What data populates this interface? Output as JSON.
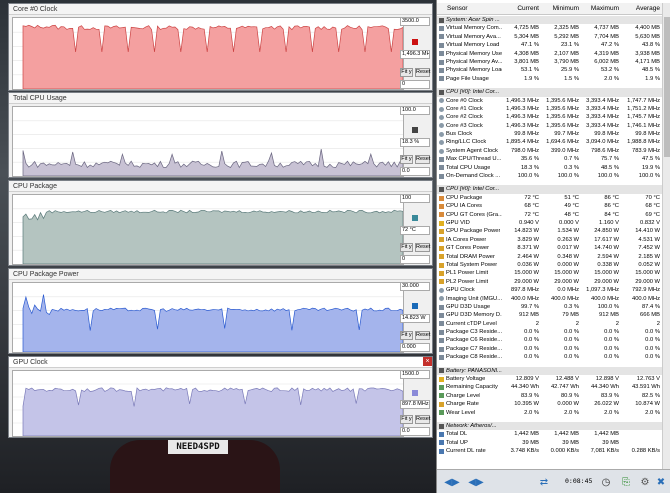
{
  "background": {
    "plate_text": "NEED4SPD"
  },
  "graphs": [
    {
      "title": "Core #0 Clock",
      "max": "3500.0",
      "current": "1,496.3 MHz",
      "min": "0",
      "fit_label": "Fit y",
      "reset_label": "Reset",
      "swatch": "#cc1111",
      "fill": "#f4a0a0",
      "stroke": "#cc4444",
      "ymax": 3500,
      "level": 1496
    },
    {
      "title": "Total CPU Usage",
      "max": "100.0",
      "current": "18.3 %",
      "min": "0.0",
      "fit_label": "Fit y",
      "reset_label": "Reset",
      "swatch": "#444444",
      "fill": "#c8c2d4",
      "stroke": "#6a6680",
      "ymax": 100,
      "level": 18
    },
    {
      "title": "CPU Package",
      "max": "100",
      "current": "72 °C",
      "min": "0",
      "fit_label": "Fit y",
      "reset_label": "Reset",
      "swatch": "#3a8a9a",
      "fill": "#b4c4c0",
      "stroke": "#5a7a7a",
      "ymax": 100,
      "level": 72
    },
    {
      "title": "CPU Package Power",
      "max": "30.000",
      "current": "14.823 W",
      "min": "0.000",
      "fit_label": "Fit y",
      "reset_label": "Reset",
      "swatch": "#1a6ab8",
      "fill": "#a4b4ec",
      "stroke": "#2a5ad0",
      "ymax": 30,
      "level": 14.8
    },
    {
      "title": "GPU Clock",
      "max": "1500.0",
      "current": "897.8 MHz",
      "min": "0.0",
      "fit_label": "Fit y",
      "reset_label": "Reset",
      "swatch": "#8a8ad8",
      "fill": "#c4c4e8",
      "stroke": "#7a7ab8",
      "ymax": 1500,
      "level": 898,
      "close_label": "×"
    }
  ],
  "sensor_panel": {
    "columns": [
      "Sensor",
      "Current",
      "Minimum",
      "Maximum",
      "Average"
    ],
    "rows": [
      {
        "type": "sec",
        "icon": "mem",
        "name": "System: Acer Spin ...",
        "cur": "",
        "min": "",
        "max": "",
        "avg": ""
      },
      {
        "type": "row",
        "icon": "mem",
        "name": "Virtual Memory Com...",
        "cur": "4,725 MB",
        "min": "2,325 MB",
        "max": "4,737 MB",
        "avg": "4,400 MB"
      },
      {
        "type": "row",
        "icon": "mem",
        "name": "Virtual Memory Ava...",
        "cur": "5,304 MB",
        "min": "5,292 MB",
        "max": "7,704 MB",
        "avg": "5,630 MB"
      },
      {
        "type": "row",
        "icon": "mem",
        "name": "Virtual Memory Load",
        "cur": "47.1 %",
        "min": "23.1 %",
        "max": "47.2 %",
        "avg": "43.8 %"
      },
      {
        "type": "row",
        "icon": "mem",
        "name": "Physical Memory Used",
        "cur": "4,308 MB",
        "min": "2,107 MB",
        "max": "4,319 MB",
        "avg": "3,938 MB"
      },
      {
        "type": "row",
        "icon": "mem",
        "name": "Physical Memory Av...",
        "cur": "3,801 MB",
        "min": "3,790 MB",
        "max": "6,002 MB",
        "avg": "4,171 MB"
      },
      {
        "type": "row",
        "icon": "mem",
        "name": "Physical Memory Load",
        "cur": "53.1 %",
        "min": "25.9 %",
        "max": "53.2 %",
        "avg": "48.5 %"
      },
      {
        "type": "row",
        "icon": "mem",
        "name": "Page File Usage",
        "cur": "1.9 %",
        "min": "1.5 %",
        "max": "2.0 %",
        "avg": "1.9 %"
      },
      {
        "type": "gap"
      },
      {
        "type": "sec",
        "icon": "chip",
        "name": "CPU [#0]: Intel Cor...",
        "cur": "",
        "min": "",
        "max": "",
        "avg": ""
      },
      {
        "type": "row",
        "icon": "clk",
        "name": "Core #0 Clock",
        "cur": "1,496.3 MHz",
        "min": "1,395.6 MHz",
        "max": "3,393.4 MHz",
        "avg": "1,747.7 MHz"
      },
      {
        "type": "row",
        "icon": "clk",
        "name": "Core #1 Clock",
        "cur": "1,496.3 MHz",
        "min": "1,395.6 MHz",
        "max": "3,393.4 MHz",
        "avg": "1,751.2 MHz"
      },
      {
        "type": "row",
        "icon": "clk",
        "name": "Core #2 Clock",
        "cur": "1,496.3 MHz",
        "min": "1,395.6 MHz",
        "max": "3,393.4 MHz",
        "avg": "1,745.7 MHz"
      },
      {
        "type": "row",
        "icon": "clk",
        "name": "Core #3 Clock",
        "cur": "1,496.3 MHz",
        "min": "1,395.6 MHz",
        "max": "3,393.4 MHz",
        "avg": "1,746.1 MHz"
      },
      {
        "type": "row",
        "icon": "clk",
        "name": "Bus Clock",
        "cur": "99.8 MHz",
        "min": "99.7 MHz",
        "max": "99.8 MHz",
        "avg": "99.8 MHz"
      },
      {
        "type": "row",
        "icon": "clk",
        "name": "Ring/LLC Clock",
        "cur": "1,895.4 MHz",
        "min": "1,694.6 MHz",
        "max": "3,094.0 MHz",
        "avg": "1,988.8 MHz"
      },
      {
        "type": "row",
        "icon": "clk",
        "name": "System Agent Clock",
        "cur": "798.0 MHz",
        "min": "399.0 MHz",
        "max": "798.6 MHz",
        "avg": "783.9 MHz"
      },
      {
        "type": "row",
        "icon": "chip",
        "name": "Max CPU/Thread U...",
        "cur": "35.6 %",
        "min": "0.7 %",
        "max": "75.7 %",
        "avg": "47.5 %"
      },
      {
        "type": "row",
        "icon": "chip",
        "name": "Total CPU Usage",
        "cur": "18.3 %",
        "min": "0.3 %",
        "max": "48.5 %",
        "avg": "19.9 %"
      },
      {
        "type": "row",
        "icon": "chip",
        "name": "On-Demand Clock ...",
        "cur": "100.0 %",
        "min": "100.0 %",
        "max": "100.0 %",
        "avg": "100.0 %"
      },
      {
        "type": "gap"
      },
      {
        "type": "sec",
        "icon": "chip",
        "name": "CPU [#0]: Intel Cor...",
        "cur": "",
        "min": "",
        "max": "",
        "avg": ""
      },
      {
        "type": "row",
        "icon": "temp",
        "name": "CPU Package",
        "cur": "72 °C",
        "min": "51 °C",
        "max": "86 °C",
        "avg": "70 °C"
      },
      {
        "type": "row",
        "icon": "temp",
        "name": "CPU IA Cores",
        "cur": "68 °C",
        "min": "49 °C",
        "max": "86 °C",
        "avg": "68 °C"
      },
      {
        "type": "row",
        "icon": "temp",
        "name": "CPU GT Cores (Gra...",
        "cur": "72 °C",
        "min": "48 °C",
        "max": "84 °C",
        "avg": "69 °C"
      },
      {
        "type": "row",
        "icon": "volt",
        "name": "GPU VID",
        "cur": "0.940 V",
        "min": "0.000 V",
        "max": "1.160 V",
        "avg": "0.832 V"
      },
      {
        "type": "row",
        "icon": "pwr",
        "name": "CPU Package Power",
        "cur": "14.823 W",
        "min": "1.534 W",
        "max": "24.850 W",
        "avg": "14.410 W"
      },
      {
        "type": "row",
        "icon": "pwr",
        "name": "IA Cores Power",
        "cur": "3.829 W",
        "min": "0.263 W",
        "max": "17.617 W",
        "avg": "4.531 W"
      },
      {
        "type": "row",
        "icon": "pwr",
        "name": "GT Cores Power",
        "cur": "8.371 W",
        "min": "0.017 W",
        "max": "14.740 W",
        "avg": "7.452 W"
      },
      {
        "type": "row",
        "icon": "pwr",
        "name": "Total DRAM Power",
        "cur": "2.464 W",
        "min": "0.348 W",
        "max": "2.594 W",
        "avg": "2.185 W"
      },
      {
        "type": "row",
        "icon": "pwr",
        "name": "Total System Power",
        "cur": "0.036 W",
        "min": "0.000 W",
        "max": "0.338 W",
        "avg": "0.052 W"
      },
      {
        "type": "row",
        "icon": "pwr",
        "name": "PL1 Power Limit",
        "cur": "15.000 W",
        "min": "15.000 W",
        "max": "15.000 W",
        "avg": "15.000 W"
      },
      {
        "type": "row",
        "icon": "pwr",
        "name": "PL2 Power Limit",
        "cur": "29.000 W",
        "min": "29.000 W",
        "max": "29.000 W",
        "avg": "29.000 W"
      },
      {
        "type": "row",
        "icon": "clk",
        "name": "GPU Clock",
        "cur": "897.8 MHz",
        "min": "0.0 MHz",
        "max": "1,097.3 MHz",
        "avg": "792.9 MHz"
      },
      {
        "type": "row",
        "icon": "clk",
        "name": "Imaging Unit (IMGU...",
        "cur": "400.0 MHz",
        "min": "400.0 MHz",
        "max": "400.0 MHz",
        "avg": "400.0 MHz"
      },
      {
        "type": "row",
        "icon": "chip",
        "name": "GPU D3D Usage",
        "cur": "99.7 %",
        "min": "0.3 %",
        "max": "100.0 %",
        "avg": "87.4 %"
      },
      {
        "type": "row",
        "icon": "chip",
        "name": "GPU D3D Memory D...",
        "cur": "912 MB",
        "min": "79 MB",
        "max": "912 MB",
        "avg": "666 MB"
      },
      {
        "type": "row",
        "icon": "chip",
        "name": "Current cTDP Level",
        "cur": "2",
        "min": "2",
        "max": "2",
        "avg": "2"
      },
      {
        "type": "row",
        "icon": "chip",
        "name": "Package C3 Reside...",
        "cur": "0.0 %",
        "min": "0.0 %",
        "max": "0.0 %",
        "avg": "0.0 %"
      },
      {
        "type": "row",
        "icon": "chip",
        "name": "Package C6 Reside...",
        "cur": "0.0 %",
        "min": "0.0 %",
        "max": "0.0 %",
        "avg": "0.0 %"
      },
      {
        "type": "row",
        "icon": "chip",
        "name": "Package C7 Reside...",
        "cur": "0.0 %",
        "min": "0.0 %",
        "max": "0.0 %",
        "avg": "0.0 %"
      },
      {
        "type": "row",
        "icon": "chip",
        "name": "Package C8 Reside...",
        "cur": "0.0 %",
        "min": "0.0 %",
        "max": "0.0 %",
        "avg": "0.0 %"
      },
      {
        "type": "gap"
      },
      {
        "type": "sec",
        "icon": "bat",
        "name": "Battery: PANASONI...",
        "cur": "",
        "min": "",
        "max": "",
        "avg": ""
      },
      {
        "type": "row",
        "icon": "volt",
        "name": "Battery Voltage",
        "cur": "12.809 V",
        "min": "12.488 V",
        "max": "12.898 V",
        "avg": "12.763 V"
      },
      {
        "type": "row",
        "icon": "bat",
        "name": "Remaining Capacity",
        "cur": "44.340 Wh",
        "min": "42.747 Wh",
        "max": "44.340 Wh",
        "avg": "43.591 Wh"
      },
      {
        "type": "row",
        "icon": "bat",
        "name": "Charge Level",
        "cur": "83.9 %",
        "min": "80.9 %",
        "max": "83.9 %",
        "avg": "82.5 %"
      },
      {
        "type": "row",
        "icon": "pwr",
        "name": "Charge Rate",
        "cur": "10.395 W",
        "min": "0.000 W",
        "max": "26.022 W",
        "avg": "10.874 W"
      },
      {
        "type": "row",
        "icon": "bat",
        "name": "Wear Level",
        "cur": "2.0 %",
        "min": "2.0 %",
        "max": "2.0 %",
        "avg": "2.0 %"
      },
      {
        "type": "gap"
      },
      {
        "type": "sec",
        "icon": "net",
        "name": "Network: Atheros/...",
        "cur": "",
        "min": "",
        "max": "",
        "avg": ""
      },
      {
        "type": "row",
        "icon": "net",
        "name": "Total DL",
        "cur": "1,442 MB",
        "min": "1,442 MB",
        "max": "1,442 MB",
        "avg": ""
      },
      {
        "type": "row",
        "icon": "net",
        "name": "Total UP",
        "cur": "39 MB",
        "min": "39 MB",
        "max": "39 MB",
        "avg": ""
      },
      {
        "type": "row",
        "icon": "net",
        "name": "Current DL rate",
        "cur": "3.748 KB/s",
        "min": "0.000 KB/s",
        "max": "7,081 KB/s",
        "avg": "0.288 KB/s"
      }
    ]
  },
  "toolbar": {
    "elapsed": "0:08:45",
    "buttons": [
      "arrows-left-right-icon",
      "arrows-double-icon",
      "network-transfer-icon",
      "clock-icon",
      "export-icon",
      "settings-icon",
      "close-x-icon"
    ]
  }
}
